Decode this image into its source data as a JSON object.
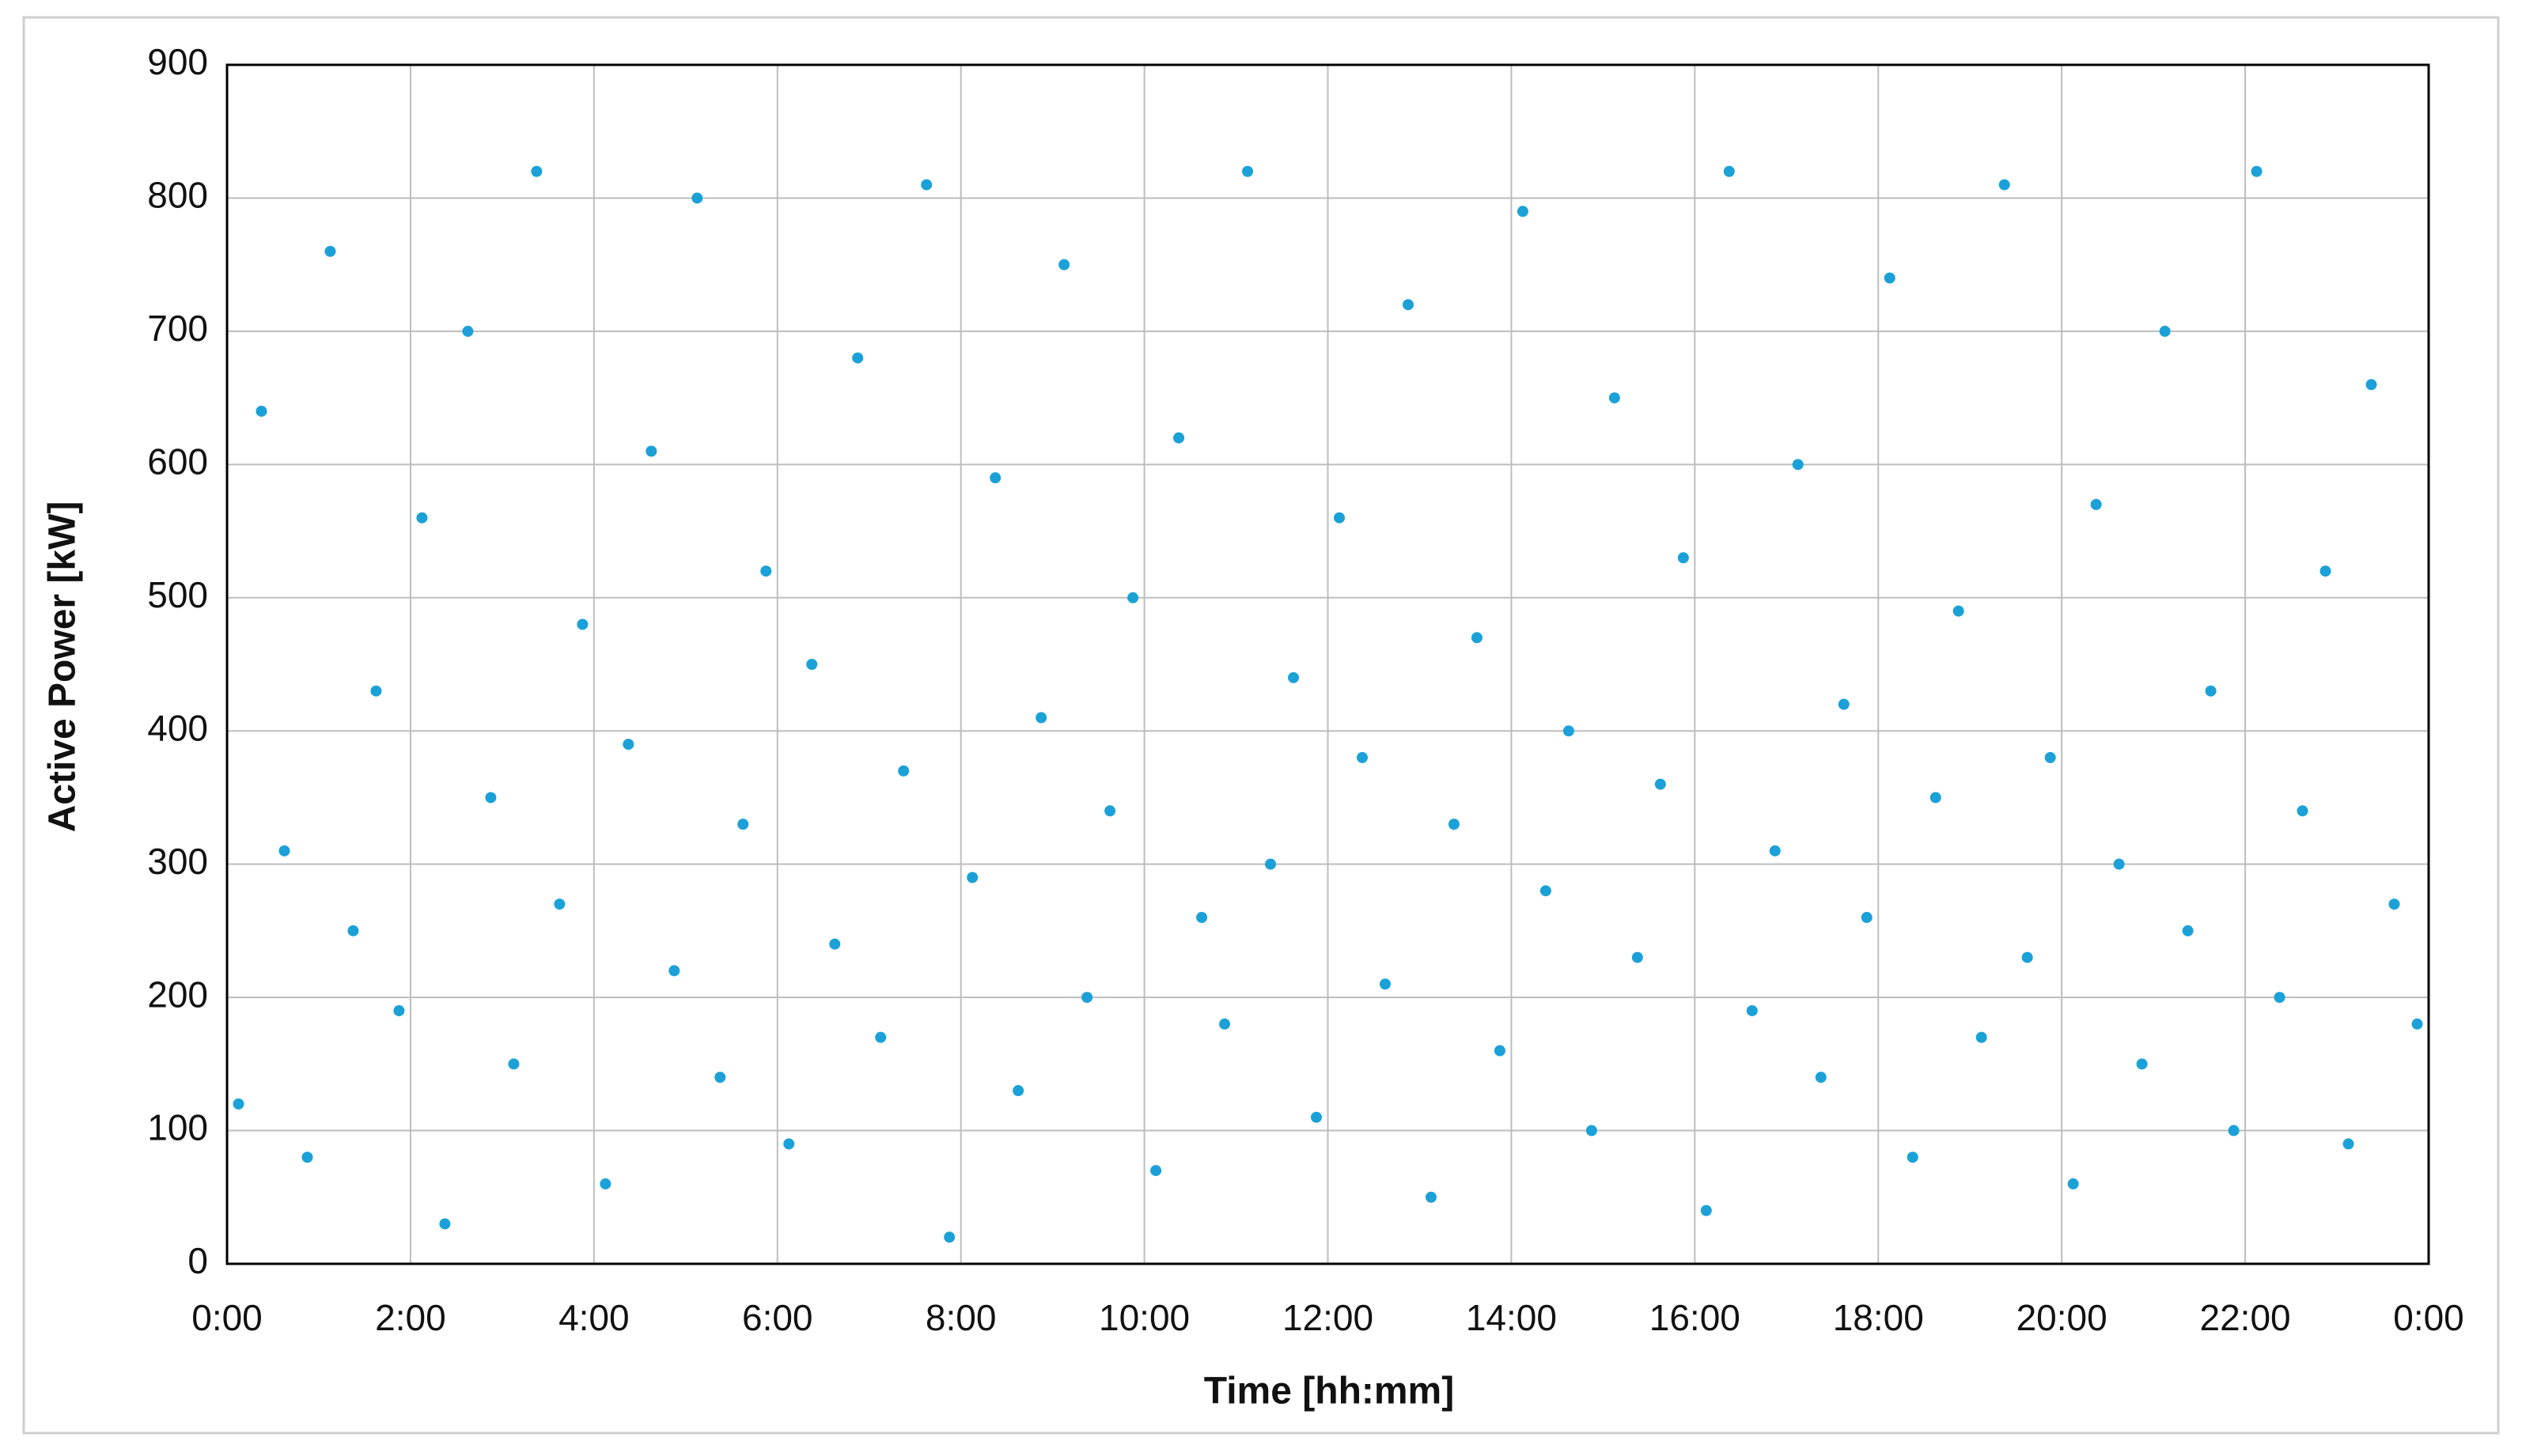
{
  "chart_data": {
    "type": "scatter",
    "x_label": "Time [hh:mm]",
    "y_label": "Active Power [kW]",
    "xlim": [
      0,
      24
    ],
    "xticks": [
      {
        "value": 0,
        "label": "0:00"
      },
      {
        "value": 2,
        "label": "2:00"
      },
      {
        "value": 4,
        "label": "4:00"
      },
      {
        "value": 6,
        "label": "6:00"
      },
      {
        "value": 8,
        "label": "8:00"
      },
      {
        "value": 10,
        "label": "10:00"
      },
      {
        "value": 12,
        "label": "12:00"
      },
      {
        "value": 14,
        "label": "14:00"
      },
      {
        "value": 16,
        "label": "16:00"
      },
      {
        "value": 18,
        "label": "18:00"
      },
      {
        "value": 20,
        "label": "20:00"
      },
      {
        "value": 22,
        "label": "22:00"
      },
      {
        "value": 24,
        "label": "0:00"
      }
    ],
    "ylim": [
      0,
      900
    ],
    "yticks": [
      0,
      100,
      200,
      300,
      400,
      500,
      600,
      700,
      800,
      900
    ],
    "grid": true,
    "color": "#1ba1d8",
    "x": [
      0.125,
      0.375,
      0.625,
      0.875,
      1.125,
      1.375,
      1.625,
      1.875,
      2.125,
      2.375,
      2.625,
      2.875,
      3.125,
      3.375,
      3.625,
      3.875,
      4.125,
      4.375,
      4.625,
      4.875,
      5.125,
      5.375,
      5.625,
      5.875,
      6.125,
      6.375,
      6.625,
      6.875,
      7.125,
      7.375,
      7.625,
      7.875,
      8.125,
      8.375,
      8.625,
      8.875,
      9.125,
      9.375,
      9.625,
      9.875,
      10.125,
      10.375,
      10.625,
      10.875,
      11.125,
      11.375,
      11.625,
      11.875,
      12.125,
      12.375,
      12.625,
      12.875,
      13.125,
      13.375,
      13.625,
      13.875,
      14.125,
      14.375,
      14.625,
      14.875,
      15.125,
      15.375,
      15.625,
      15.875,
      16.125,
      16.375,
      16.625,
      16.875,
      17.125,
      17.375,
      17.625,
      17.875,
      18.125,
      18.375,
      18.625,
      18.875,
      19.125,
      19.375,
      19.625,
      19.875,
      20.125,
      20.375,
      20.625,
      20.875,
      21.125,
      21.375,
      21.625,
      21.875,
      22.125,
      22.375,
      22.625,
      22.875,
      23.125,
      23.375,
      23.625,
      23.875
    ],
    "y": [
      120,
      640,
      310,
      80,
      760,
      250,
      430,
      190,
      560,
      30,
      700,
      350,
      150,
      820,
      270,
      480,
      60,
      390,
      610,
      220,
      800,
      140,
      330,
      520,
      90,
      450,
      240,
      680,
      170,
      370,
      810,
      20,
      290,
      590,
      130,
      410,
      750,
      200,
      340,
      500,
      70,
      620,
      260,
      180,
      820,
      300,
      440,
      110,
      560,
      380,
      210,
      720,
      50,
      330,
      470,
      160,
      790,
      280,
      400,
      100,
      650,
      230,
      360,
      530,
      40,
      820,
      190,
      310,
      600,
      140,
      420,
      260,
      740,
      80,
      350,
      490,
      170,
      810,
      230,
      380,
      60,
      570,
      300,
      150,
      700,
      250,
      430,
      100,
      820,
      200,
      340,
      520,
      90,
      660,
      270,
      180
    ]
  }
}
